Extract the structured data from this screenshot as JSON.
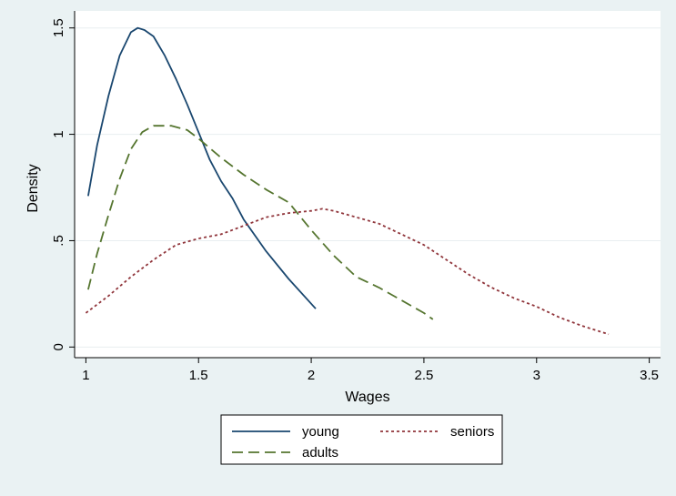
{
  "chart_data": {
    "type": "line",
    "xlabel": "Wages",
    "ylabel": "Density",
    "xlim": [
      0.95,
      3.55
    ],
    "ylim": [
      -0.05,
      1.58
    ],
    "x_ticks": [
      1,
      1.5,
      2,
      2.5,
      3,
      3.5
    ],
    "x_tick_labels": [
      "1",
      "1.5",
      "2",
      "2.5",
      "3",
      "3.5"
    ],
    "y_ticks": [
      0,
      0.5,
      1,
      1.5
    ],
    "y_tick_labels": [
      "0",
      ".5",
      "1",
      "1.5"
    ],
    "grid": true,
    "legend_position": "bottom",
    "series": [
      {
        "name": "young",
        "color": "#1a476f",
        "dash": "solid",
        "points": [
          [
            1.01,
            0.71
          ],
          [
            1.05,
            0.95
          ],
          [
            1.1,
            1.18
          ],
          [
            1.15,
            1.37
          ],
          [
            1.2,
            1.48
          ],
          [
            1.23,
            1.5
          ],
          [
            1.26,
            1.49
          ],
          [
            1.3,
            1.46
          ],
          [
            1.35,
            1.37
          ],
          [
            1.4,
            1.26
          ],
          [
            1.45,
            1.14
          ],
          [
            1.5,
            1.01
          ],
          [
            1.55,
            0.88
          ],
          [
            1.6,
            0.78
          ],
          [
            1.65,
            0.7
          ],
          [
            1.7,
            0.6
          ],
          [
            1.8,
            0.45
          ],
          [
            1.9,
            0.32
          ],
          [
            2.02,
            0.18
          ]
        ]
      },
      {
        "name": "seniors",
        "color": "#90353b",
        "dash": "short",
        "points": [
          [
            1.0,
            0.16
          ],
          [
            1.1,
            0.24
          ],
          [
            1.2,
            0.33
          ],
          [
            1.3,
            0.41
          ],
          [
            1.4,
            0.48
          ],
          [
            1.5,
            0.51
          ],
          [
            1.6,
            0.53
          ],
          [
            1.7,
            0.57
          ],
          [
            1.8,
            0.61
          ],
          [
            1.9,
            0.63
          ],
          [
            2.0,
            0.64
          ],
          [
            2.05,
            0.65
          ],
          [
            2.1,
            0.64
          ],
          [
            2.2,
            0.61
          ],
          [
            2.3,
            0.58
          ],
          [
            2.4,
            0.53
          ],
          [
            2.5,
            0.48
          ],
          [
            2.6,
            0.41
          ],
          [
            2.7,
            0.34
          ],
          [
            2.8,
            0.28
          ],
          [
            2.9,
            0.23
          ],
          [
            3.0,
            0.19
          ],
          [
            3.1,
            0.14
          ],
          [
            3.2,
            0.1
          ],
          [
            3.32,
            0.06
          ]
        ]
      },
      {
        "name": "adults",
        "color": "#55752f",
        "dash": "long",
        "points": [
          [
            1.01,
            0.27
          ],
          [
            1.05,
            0.44
          ],
          [
            1.1,
            0.62
          ],
          [
            1.15,
            0.79
          ],
          [
            1.2,
            0.93
          ],
          [
            1.25,
            1.01
          ],
          [
            1.3,
            1.04
          ],
          [
            1.38,
            1.04
          ],
          [
            1.45,
            1.02
          ],
          [
            1.5,
            0.98
          ],
          [
            1.6,
            0.89
          ],
          [
            1.7,
            0.81
          ],
          [
            1.8,
            0.74
          ],
          [
            1.9,
            0.68
          ],
          [
            2.0,
            0.55
          ],
          [
            2.1,
            0.43
          ],
          [
            2.2,
            0.33
          ],
          [
            2.3,
            0.28
          ],
          [
            2.4,
            0.22
          ],
          [
            2.5,
            0.16
          ],
          [
            2.54,
            0.13
          ]
        ]
      }
    ]
  }
}
